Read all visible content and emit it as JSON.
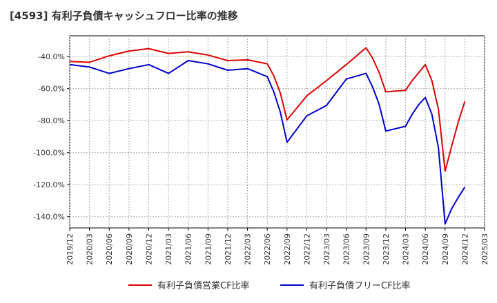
{
  "title": "[4593]  有利子負債キャッシュフロー比率の推移",
  "colors": {
    "series1": "#dd0000",
    "series2": "#0000cc",
    "grid": "#aaaaaa",
    "axis": "#000000"
  },
  "chart_data": {
    "type": "line",
    "title": "[4593]  有利子負債キャッシュフロー比率の推移",
    "xlabel": "",
    "ylabel": "",
    "x_ticks": [
      "2019/12",
      "2020/03",
      "2020/06",
      "2020/09",
      "2020/12",
      "2021/03",
      "2021/06",
      "2021/09",
      "2021/12",
      "2022/03",
      "2022/06",
      "2022/09",
      "2022/12",
      "2023/03",
      "2023/06",
      "2023/09",
      "2023/12",
      "2024/03",
      "2024/06",
      "2024/09",
      "2024/12",
      "2025/03"
    ],
    "y_ticks": [
      "-40.0%",
      "-60.0%",
      "-80.0%",
      "-100.0%",
      "-120.0%",
      "-140.0%"
    ],
    "ylim": [
      -147,
      -27
    ],
    "xlim": [
      "2019/12",
      "2025/03"
    ],
    "grid": true,
    "legend_position": "bottom",
    "series": [
      {
        "name": "有利子負債営業CF比率",
        "color": "#dd0000",
        "points": [
          [
            "2019/12",
            -43.0
          ],
          [
            "2020/03",
            -43.5
          ],
          [
            "2020/06",
            -39.5
          ],
          [
            "2020/09",
            -36.5
          ],
          [
            "2020/12",
            -35.0
          ],
          [
            "2021/03",
            -38.0
          ],
          [
            "2021/06",
            -37.0
          ],
          [
            "2021/09",
            -39.0
          ],
          [
            "2021/12",
            -42.5
          ],
          [
            "2022/03",
            -42.0
          ],
          [
            "2022/06",
            -44.5
          ],
          [
            "2022/07",
            -52.0
          ],
          [
            "2022/08",
            -63.0
          ],
          [
            "2022/09",
            -79.5
          ],
          [
            "2022/12",
            -64.5
          ],
          [
            "2023/03",
            -55.0
          ],
          [
            "2023/06",
            -45.0
          ],
          [
            "2023/09",
            -34.5
          ],
          [
            "2023/10",
            -41.0
          ],
          [
            "2023/11",
            -50.0
          ],
          [
            "2023/12",
            -62.0
          ],
          [
            "2024/03",
            -61.0
          ],
          [
            "2024/04",
            -55.0
          ],
          [
            "2024/05",
            -50.0
          ],
          [
            "2024/06",
            -45.0
          ],
          [
            "2024/07",
            -55.0
          ],
          [
            "2024/08",
            -73.0
          ],
          [
            "2024/09",
            -111.5
          ],
          [
            "2024/10",
            -96.0
          ],
          [
            "2024/11",
            -81.0
          ],
          [
            "2024/12",
            -68.0
          ]
        ]
      },
      {
        "name": "有利子負債フリーCF比率",
        "color": "#0000cc",
        "points": [
          [
            "2019/12",
            -45.0
          ],
          [
            "2020/03",
            -46.5
          ],
          [
            "2020/06",
            -50.5
          ],
          [
            "2020/09",
            -47.5
          ],
          [
            "2020/12",
            -45.0
          ],
          [
            "2021/03",
            -50.5
          ],
          [
            "2021/06",
            -42.5
          ],
          [
            "2021/09",
            -44.5
          ],
          [
            "2021/12",
            -48.5
          ],
          [
            "2022/03",
            -47.5
          ],
          [
            "2022/06",
            -52.5
          ],
          [
            "2022/07",
            -62.0
          ],
          [
            "2022/08",
            -75.0
          ],
          [
            "2022/09",
            -93.5
          ],
          [
            "2022/12",
            -77.0
          ],
          [
            "2023/03",
            -70.5
          ],
          [
            "2023/06",
            -54.0
          ],
          [
            "2023/09",
            -50.5
          ],
          [
            "2023/10",
            -59.0
          ],
          [
            "2023/11",
            -70.0
          ],
          [
            "2023/12",
            -86.5
          ],
          [
            "2024/03",
            -83.5
          ],
          [
            "2024/04",
            -76.0
          ],
          [
            "2024/05",
            -70.0
          ],
          [
            "2024/06",
            -65.5
          ],
          [
            "2024/07",
            -76.0
          ],
          [
            "2024/08",
            -97.0
          ],
          [
            "2024/09",
            -144.5
          ],
          [
            "2024/10",
            -135.0
          ],
          [
            "2024/11",
            -128.0
          ],
          [
            "2024/12",
            -121.5
          ]
        ]
      }
    ]
  }
}
